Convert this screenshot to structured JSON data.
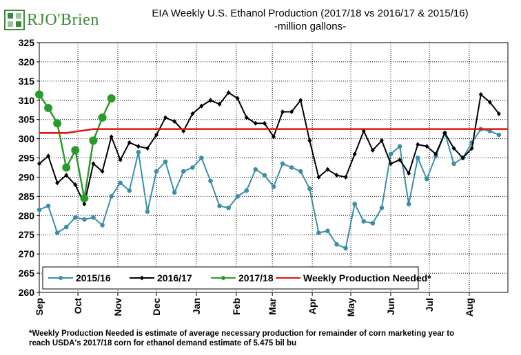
{
  "brand": {
    "logo_text": "RJO'Brien",
    "logo_icon": "rjo-square-logo-icon",
    "color": "#3a8a3a"
  },
  "header": {
    "title": "EIA Weekly U.S. Ethanol Production (2017/18 vs 2016/17 & 2015/16)",
    "subtitle": "-million  gallons-"
  },
  "footnote": {
    "line1": "*Weekly Production Needed is estimate of average necessary production for remainder of corn marketing year to",
    "line2": "reach USDA's 2017/18 corn for ethanol demand estimate of 5.475 bil bu"
  },
  "chart_data": {
    "type": "line",
    "ylim": [
      260,
      325
    ],
    "yticks": [
      260,
      265,
      270,
      275,
      280,
      285,
      290,
      295,
      300,
      305,
      310,
      315,
      320,
      325
    ],
    "xlim": [
      0,
      52
    ],
    "month_ticks": [
      {
        "label": "Sep",
        "x": 0
      },
      {
        "label": "Oct",
        "x": 4.286
      },
      {
        "label": "Nov",
        "x": 8.714
      },
      {
        "label": "Dec",
        "x": 13
      },
      {
        "label": "Jan",
        "x": 17.43
      },
      {
        "label": "Feb",
        "x": 21.86
      },
      {
        "label": "Mar",
        "x": 25.86
      },
      {
        "label": "Apr",
        "x": 30.29
      },
      {
        "label": "May",
        "x": 34.57
      },
      {
        "label": "Jun",
        "x": 39
      },
      {
        "label": "Jul",
        "x": 43.29
      },
      {
        "label": "Aug",
        "x": 47.71
      }
    ],
    "grid": true,
    "legend_position": "bottom-left",
    "series": [
      {
        "name": "2015/16",
        "color": "#3a8ea8",
        "marker": "circle",
        "values": [
          281.5,
          282.5,
          275.5,
          277,
          279.5,
          279,
          279.5,
          277.5,
          285,
          288.5,
          286.5,
          296.5,
          281,
          291.5,
          294,
          286,
          291.5,
          292.5,
          295,
          289,
          282.5,
          282,
          285,
          286.5,
          292,
          290.5,
          287.5,
          293.5,
          292.5,
          291.5,
          287,
          275.5,
          276,
          272.5,
          271.5,
          283,
          278.5,
          278,
          282,
          296,
          298,
          283,
          295,
          289.5,
          295.5,
          301.5,
          293.5,
          295,
          299,
          302.5,
          302,
          301
        ]
      },
      {
        "name": "2016/17",
        "color": "#000000",
        "marker": "diamond",
        "values": [
          293.5,
          295.5,
          288.5,
          290.5,
          288,
          283,
          293.5,
          291.5,
          300.5,
          294.5,
          299,
          298,
          297.5,
          301,
          305.5,
          304.5,
          302,
          306.5,
          308.5,
          310,
          309,
          312,
          310.5,
          305.5,
          304,
          304,
          300.5,
          307,
          307,
          310,
          299.5,
          290,
          292,
          290.5,
          290,
          296,
          302,
          297,
          299.5,
          293.5,
          294.5,
          291,
          298.5,
          298,
          296,
          301.5,
          297.5,
          295,
          297.5,
          311.5,
          309.5,
          306.5
        ]
      },
      {
        "name": "2017/18",
        "color": "#2a9a2a",
        "marker": "circle",
        "values": [
          311.5,
          308,
          304,
          292.5,
          297,
          284.5,
          299.5,
          305.5,
          310.5
        ]
      },
      {
        "name": "Weekly Production Needed*",
        "color": "#e01010",
        "marker": "none",
        "x": [
          0,
          3,
          4.5,
          6,
          52
        ],
        "values": [
          301.5,
          301.5,
          302,
          302.5,
          302.5
        ]
      }
    ]
  }
}
